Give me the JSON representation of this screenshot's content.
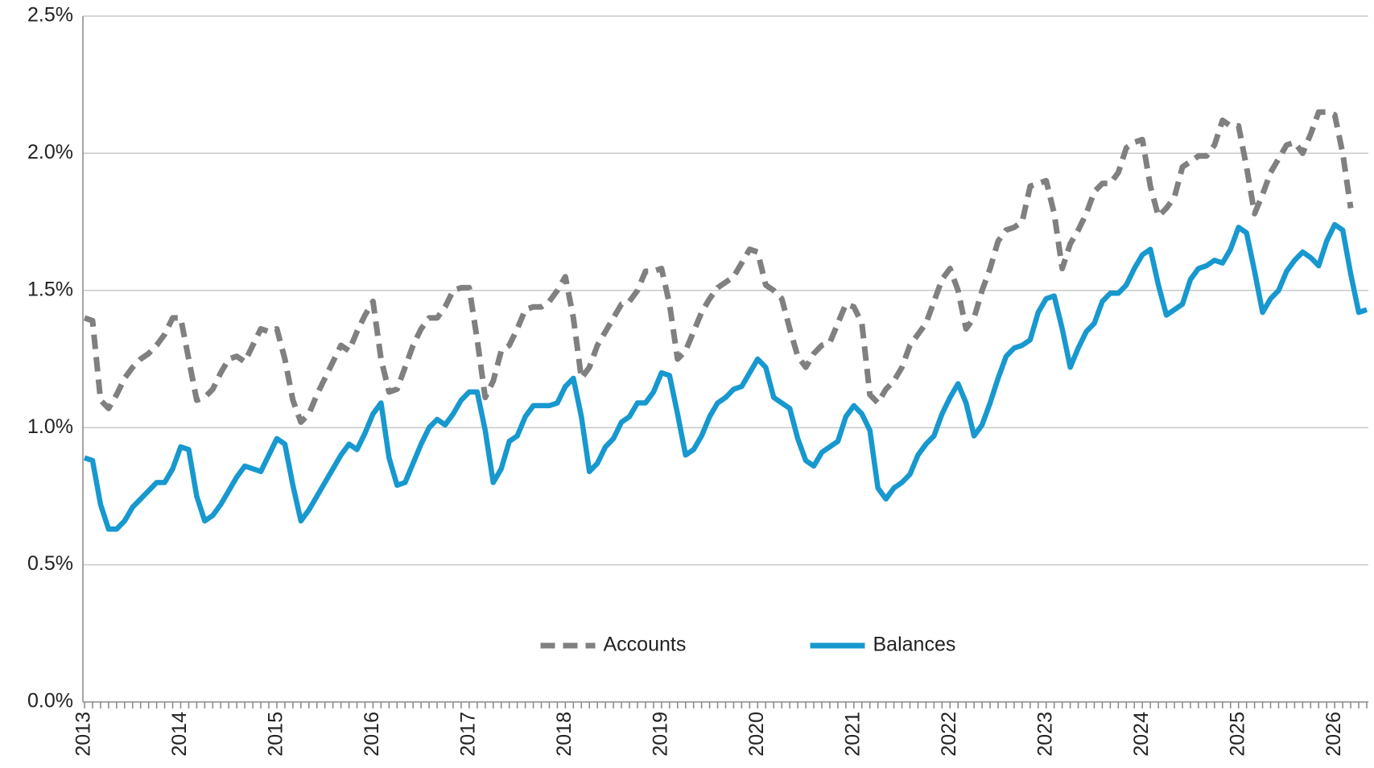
{
  "chart_data": {
    "type": "line",
    "categories": [
      "2013",
      null,
      null,
      null,
      null,
      null,
      null,
      null,
      null,
      null,
      null,
      null,
      "2014",
      null,
      null,
      null,
      null,
      null,
      null,
      null,
      null,
      null,
      null,
      null,
      "2015",
      null,
      null,
      null,
      null,
      null,
      null,
      null,
      null,
      null,
      null,
      null,
      "2016",
      null,
      null,
      null,
      null,
      null,
      null,
      null,
      null,
      null,
      null,
      null,
      "2017",
      null,
      null,
      null,
      null,
      null,
      null,
      null,
      null,
      null,
      null,
      null,
      "2018",
      null,
      null,
      null,
      null,
      null,
      null,
      null,
      null,
      null,
      null,
      null,
      "2019",
      null,
      null,
      null,
      null,
      null,
      null,
      null,
      null,
      null,
      null,
      null,
      "2020",
      null,
      null,
      null,
      null,
      null,
      null,
      null,
      null,
      null,
      null,
      null,
      "2021",
      null,
      null,
      null,
      null,
      null,
      null,
      null,
      null,
      null,
      null,
      null,
      "2022",
      null,
      null,
      null,
      null,
      null,
      null,
      null,
      null,
      null,
      null,
      null,
      "2023",
      null,
      null,
      null,
      null,
      null,
      null,
      null,
      null,
      null,
      null,
      null,
      "2024",
      null,
      null,
      null,
      null,
      null,
      null,
      null,
      null,
      null,
      null,
      null,
      "2025",
      null,
      null,
      null,
      null,
      null,
      null,
      null,
      null,
      null,
      null,
      null,
      "2026",
      null,
      null,
      null,
      null
    ],
    "series": [
      {
        "name": "Accounts",
        "color": "#808080",
        "dashed": true,
        "values": [
          1.4,
          1.39,
          1.1,
          1.07,
          1.12,
          1.18,
          1.22,
          1.25,
          1.27,
          1.3,
          1.34,
          1.4,
          1.4,
          1.25,
          1.1,
          1.11,
          1.14,
          1.2,
          1.25,
          1.26,
          1.24,
          1.3,
          1.36,
          1.35,
          1.36,
          1.25,
          1.1,
          1.02,
          1.05,
          1.12,
          1.18,
          1.24,
          1.3,
          1.28,
          1.35,
          1.41,
          1.46,
          1.25,
          1.13,
          1.14,
          1.22,
          1.3,
          1.36,
          1.4,
          1.4,
          1.44,
          1.5,
          1.51,
          1.51,
          1.32,
          1.11,
          1.17,
          1.28,
          1.3,
          1.36,
          1.43,
          1.44,
          1.44,
          1.46,
          1.5,
          1.55,
          1.4,
          1.18,
          1.22,
          1.3,
          1.35,
          1.4,
          1.45,
          1.46,
          1.5,
          1.57,
          1.57,
          1.58,
          1.45,
          1.25,
          1.28,
          1.35,
          1.42,
          1.47,
          1.51,
          1.53,
          1.55,
          1.6,
          1.65,
          1.64,
          1.52,
          1.5,
          1.47,
          1.36,
          1.26,
          1.22,
          1.27,
          1.3,
          1.31,
          1.38,
          1.45,
          1.44,
          1.38,
          1.12,
          1.09,
          1.14,
          1.17,
          1.22,
          1.3,
          1.34,
          1.38,
          1.46,
          1.54,
          1.58,
          1.5,
          1.36,
          1.4,
          1.5,
          1.58,
          1.68,
          1.72,
          1.73,
          1.75,
          1.88,
          1.89,
          1.9,
          1.78,
          1.58,
          1.67,
          1.72,
          1.78,
          1.86,
          1.89,
          1.89,
          1.93,
          2.02,
          2.04,
          2.05,
          1.88,
          1.77,
          1.8,
          1.84,
          1.95,
          1.97,
          1.99,
          1.99,
          2.03,
          2.12,
          2.1,
          2.1,
          1.95,
          1.78,
          1.85,
          1.93,
          1.98,
          2.03,
          2.04,
          2.0,
          2.07,
          2.15,
          2.15,
          2.14,
          2.0,
          1.8,
          null,
          null
        ]
      },
      {
        "name": "Balances",
        "color": "#1798cf",
        "dashed": false,
        "values": [
          0.89,
          0.88,
          0.72,
          0.63,
          0.63,
          0.66,
          0.71,
          0.74,
          0.77,
          0.8,
          0.8,
          0.85,
          0.93,
          0.92,
          0.75,
          0.66,
          0.68,
          0.72,
          0.77,
          0.82,
          0.86,
          0.85,
          0.84,
          0.9,
          0.96,
          0.94,
          0.79,
          0.66,
          0.7,
          0.75,
          0.8,
          0.85,
          0.9,
          0.94,
          0.92,
          0.98,
          1.05,
          1.09,
          0.89,
          0.79,
          0.8,
          0.87,
          0.94,
          1.0,
          1.03,
          1.01,
          1.05,
          1.1,
          1.13,
          1.13,
          0.99,
          0.8,
          0.85,
          0.95,
          0.97,
          1.04,
          1.08,
          1.08,
          1.08,
          1.09,
          1.15,
          1.18,
          1.04,
          0.84,
          0.87,
          0.93,
          0.96,
          1.02,
          1.04,
          1.09,
          1.09,
          1.13,
          1.2,
          1.19,
          1.05,
          0.9,
          0.92,
          0.97,
          1.04,
          1.09,
          1.11,
          1.14,
          1.15,
          1.2,
          1.25,
          1.22,
          1.11,
          1.09,
          1.07,
          0.96,
          0.88,
          0.86,
          0.91,
          0.93,
          0.95,
          1.04,
          1.08,
          1.05,
          0.99,
          0.78,
          0.74,
          0.78,
          0.8,
          0.83,
          0.9,
          0.94,
          0.97,
          1.05,
          1.11,
          1.16,
          1.09,
          0.97,
          1.01,
          1.09,
          1.18,
          1.26,
          1.29,
          1.3,
          1.32,
          1.42,
          1.47,
          1.48,
          1.36,
          1.22,
          1.29,
          1.35,
          1.38,
          1.46,
          1.49,
          1.49,
          1.52,
          1.58,
          1.63,
          1.65,
          1.52,
          1.41,
          1.43,
          1.45,
          1.54,
          1.58,
          1.59,
          1.61,
          1.6,
          1.65,
          1.73,
          1.71,
          1.57,
          1.42,
          1.47,
          1.5,
          1.57,
          1.61,
          1.64,
          1.62,
          1.59,
          1.68,
          1.74,
          1.72,
          1.56,
          1.42,
          1.43
        ]
      }
    ],
    "ylim": [
      0,
      2.5
    ],
    "yticks": [
      {
        "value": 0,
        "label": "0.0%"
      },
      {
        "value": 0.5,
        "label": "0.5%"
      },
      {
        "value": 1,
        "label": "1.0%"
      },
      {
        "value": 1.5,
        "label": "1.5%"
      },
      {
        "value": 2,
        "label": "2.0%"
      },
      {
        "value": 2.5,
        "label": "2.5%"
      }
    ],
    "grid": true,
    "legend": "lower center"
  }
}
